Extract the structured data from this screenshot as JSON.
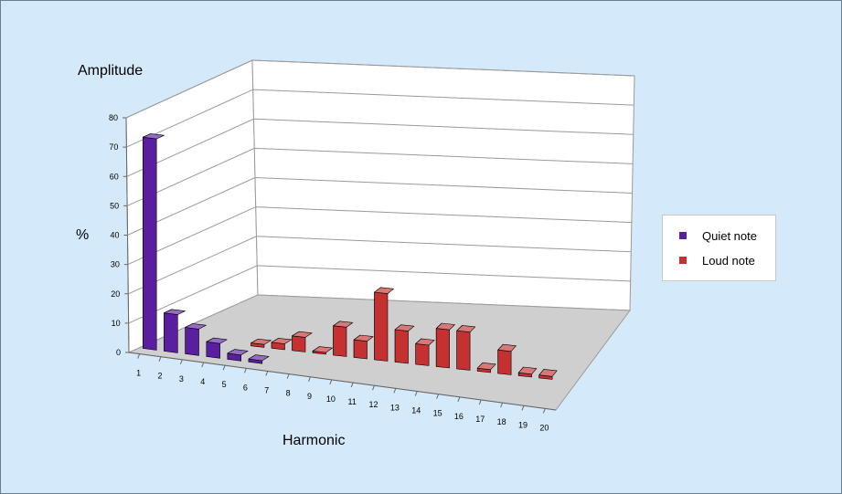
{
  "chart_data": {
    "type": "bar",
    "title": "",
    "xlabel": "Harmonic",
    "ylabel": "Amplitude",
    "yunit": "%",
    "ylim": [
      0,
      80
    ],
    "yticks": [
      0,
      10,
      20,
      30,
      40,
      50,
      60,
      70,
      80
    ],
    "categories": [
      "1",
      "2",
      "3",
      "4",
      "5",
      "6",
      "7",
      "8",
      "9",
      "10",
      "11",
      "12",
      "13",
      "14",
      "15",
      "16",
      "17",
      "18",
      "19",
      "20"
    ],
    "grid": true,
    "legend_position": "right",
    "series": [
      {
        "name": "Quiet note",
        "color": "#5a1fa0",
        "values": [
          72,
          13,
          9,
          5,
          2,
          1,
          null,
          null,
          null,
          null,
          null,
          null,
          null,
          null,
          null,
          null,
          null,
          null,
          null,
          null
        ]
      },
      {
        "name": "Loud note",
        "color": "#c53030",
        "values": [
          null,
          null,
          null,
          null,
          1,
          2,
          5,
          0.5,
          10,
          6,
          23,
          11,
          7,
          13,
          13,
          1,
          8,
          1,
          1,
          null
        ]
      }
    ]
  }
}
